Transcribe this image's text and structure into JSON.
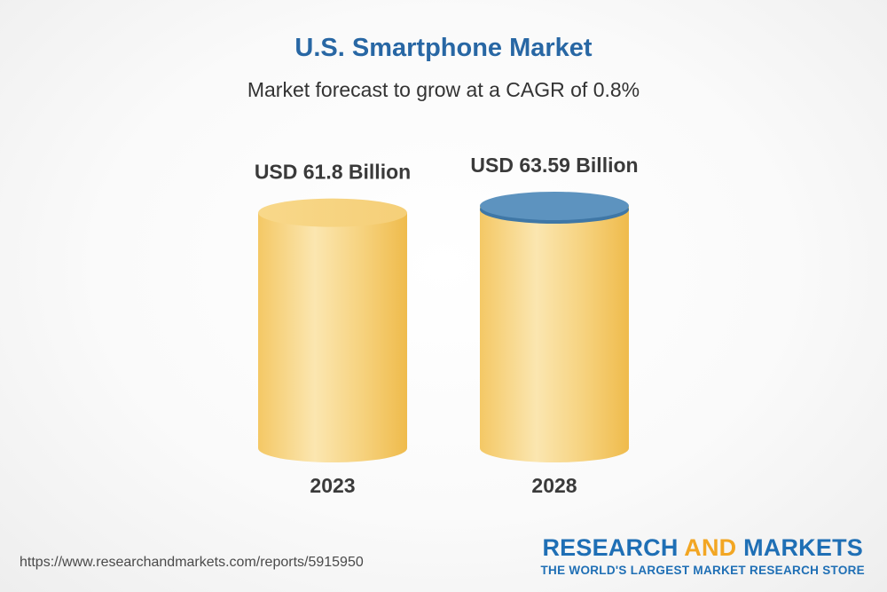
{
  "title": "U.S. Smartphone Market",
  "subtitle": "Market forecast to grow at a CAGR of 0.8%",
  "chart_data": {
    "type": "bar",
    "categories": [
      "2023",
      "2028"
    ],
    "values": [
      61.8,
      63.59
    ],
    "value_labels": [
      "USD 61.8 Billion",
      "USD 63.59 Billion"
    ],
    "unit": "USD Billion",
    "cagr_percent": 0.8,
    "colors": {
      "body": "#f2c35e",
      "highlight": "#fbe6b0",
      "top_default": "#f8dc94",
      "top_highlight": "#5d93bf"
    }
  },
  "source_url": "https://www.researchandmarkets.com/reports/5915950",
  "brand": {
    "name_part1": "RESEARCH",
    "name_part2": "AND",
    "name_part3": "MARKETS",
    "tagline": "THE WORLD'S LARGEST MARKET RESEARCH STORE"
  }
}
